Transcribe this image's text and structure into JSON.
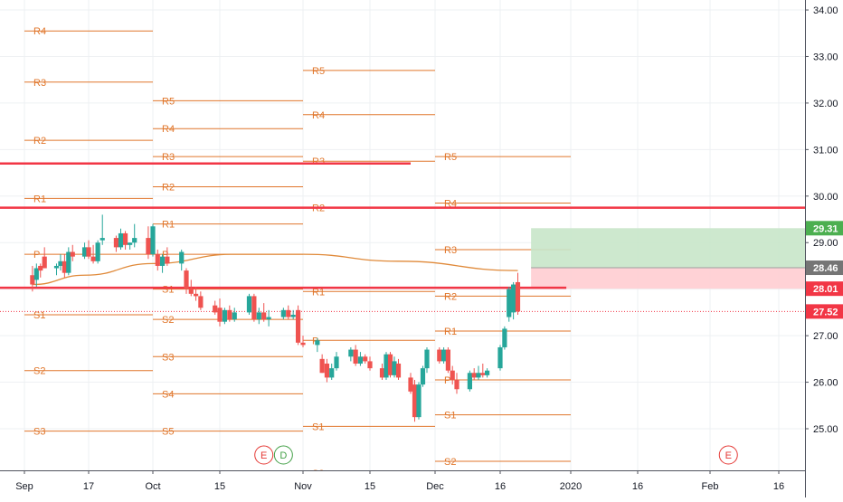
{
  "chart_data": {
    "type": "candlestick",
    "title": "",
    "xlabel": "",
    "ylabel": "",
    "ylim": [
      24.05,
      34.3
    ],
    "grid": true,
    "x_axis_ticks": [
      "Sep",
      "17",
      "Oct",
      "15",
      "Nov",
      "15",
      "Dec",
      "16",
      "2020",
      "16",
      "Feb",
      "16"
    ],
    "y_axis_ticks": [
      "25.00",
      "26.00",
      "27.00",
      "28.00",
      "29.00",
      "30.00",
      "31.00",
      "32.00",
      "33.00",
      "34.00"
    ],
    "price_badges": [
      {
        "label": "29.31",
        "value": 29.31,
        "color": "#4caf50"
      },
      {
        "label": "28.46",
        "value": 28.46,
        "color": "#757575"
      },
      {
        "label": "28.01",
        "value": 28.01,
        "color": "#f23645"
      },
      {
        "label": "27.52",
        "value": 27.52,
        "color": "#f23645"
      }
    ],
    "last_price_line": 27.52,
    "candle_series": {
      "up_color": "#26a69a",
      "down_color": "#ef5350",
      "candles": [
        {
          "date": "Sep 3",
          "o": 28.3,
          "h": 28.5,
          "l": 27.95,
          "c": 28.1
        },
        {
          "date": "Sep 4",
          "o": 28.2,
          "h": 28.55,
          "l": 28.05,
          "c": 28.45
        },
        {
          "date": "Sep 5",
          "o": 28.5,
          "h": 28.55,
          "l": 28.25,
          "c": 28.4
        },
        {
          "date": "Sep 6",
          "o": 28.7,
          "h": 28.9,
          "l": 28.45,
          "c": 28.45
        },
        {
          "date": "Sep 9",
          "o": 28.45,
          "h": 28.55,
          "l": 28.3,
          "c": 28.5
        },
        {
          "date": "Sep 10",
          "o": 28.5,
          "h": 28.75,
          "l": 28.4,
          "c": 28.6
        },
        {
          "date": "Sep 11",
          "o": 28.6,
          "h": 28.75,
          "l": 28.25,
          "c": 28.35
        },
        {
          "date": "Sep 12",
          "o": 28.35,
          "h": 28.9,
          "l": 28.3,
          "c": 28.8
        },
        {
          "date": "Sep 13",
          "o": 28.8,
          "h": 28.95,
          "l": 28.6,
          "c": 28.7
        },
        {
          "date": "Sep 16",
          "o": 28.7,
          "h": 29.0,
          "l": 28.65,
          "c": 28.9
        },
        {
          "date": "Sep 17",
          "o": 28.9,
          "h": 29.05,
          "l": 28.65,
          "c": 28.7
        },
        {
          "date": "Sep 18",
          "o": 28.7,
          "h": 28.95,
          "l": 28.55,
          "c": 28.6
        },
        {
          "date": "Sep 19",
          "o": 28.6,
          "h": 29.05,
          "l": 28.55,
          "c": 29.0
        },
        {
          "date": "Sep 20",
          "o": 29.05,
          "h": 29.6,
          "l": 28.95,
          "c": 29.1
        },
        {
          "date": "Sep 23",
          "o": 29.1,
          "h": 29.15,
          "l": 28.8,
          "c": 28.9
        },
        {
          "date": "Sep 24",
          "o": 28.9,
          "h": 29.3,
          "l": 28.85,
          "c": 29.2
        },
        {
          "date": "Sep 25",
          "o": 29.2,
          "h": 29.25,
          "l": 28.85,
          "c": 28.95
        },
        {
          "date": "Sep 26",
          "o": 28.95,
          "h": 29.0,
          "l": 28.85,
          "c": 29.0
        },
        {
          "date": "Sep 27",
          "o": 29.0,
          "h": 29.4,
          "l": 28.9,
          "c": 29.1
        },
        {
          "date": "Sep 30",
          "o": 29.1,
          "h": 29.35,
          "l": 28.65,
          "c": 28.75
        },
        {
          "date": "Oct 1",
          "o": 28.75,
          "h": 29.4,
          "l": 28.7,
          "c": 29.35
        },
        {
          "date": "Oct 2",
          "o": 28.75,
          "h": 28.85,
          "l": 28.4,
          "c": 28.5
        },
        {
          "date": "Oct 3",
          "o": 28.5,
          "h": 28.75,
          "l": 28.35,
          "c": 28.7
        },
        {
          "date": "Oct 4",
          "o": 28.7,
          "h": 28.9,
          "l": 28.5,
          "c": 28.55
        },
        {
          "date": "Oct 7",
          "o": 28.55,
          "h": 28.85,
          "l": 28.4,
          "c": 28.8
        },
        {
          "date": "Oct 8",
          "o": 28.4,
          "h": 28.45,
          "l": 27.9,
          "c": 28.0
        },
        {
          "date": "Oct 9",
          "o": 28.0,
          "h": 28.2,
          "l": 27.85,
          "c": 27.9
        },
        {
          "date": "Oct 10",
          "o": 27.9,
          "h": 28.05,
          "l": 27.75,
          "c": 27.85
        },
        {
          "date": "Oct 11",
          "o": 27.85,
          "h": 27.95,
          "l": 27.55,
          "c": 27.6
        },
        {
          "date": "Oct 14",
          "o": 27.65,
          "h": 27.75,
          "l": 27.45,
          "c": 27.5
        },
        {
          "date": "Oct 15",
          "o": 27.6,
          "h": 27.8,
          "l": 27.2,
          "c": 27.3
        },
        {
          "date": "Oct 16",
          "o": 27.3,
          "h": 27.6,
          "l": 27.25,
          "c": 27.55
        },
        {
          "date": "Oct 17",
          "o": 27.55,
          "h": 27.65,
          "l": 27.3,
          "c": 27.35
        },
        {
          "date": "Oct 18",
          "o": 27.35,
          "h": 27.6,
          "l": 27.3,
          "c": 27.5
        },
        {
          "date": "Oct 21",
          "o": 27.5,
          "h": 27.9,
          "l": 27.45,
          "c": 27.85
        },
        {
          "date": "Oct 22",
          "o": 27.85,
          "h": 27.9,
          "l": 27.3,
          "c": 27.35
        },
        {
          "date": "Oct 23",
          "o": 27.35,
          "h": 27.6,
          "l": 27.25,
          "c": 27.5
        },
        {
          "date": "Oct 24",
          "o": 27.5,
          "h": 27.7,
          "l": 27.3,
          "c": 27.35
        },
        {
          "date": "Oct 25",
          "o": 27.35,
          "h": 27.55,
          "l": 27.2,
          "c": 27.4
        },
        {
          "date": "Oct 28",
          "o": 27.4,
          "h": 27.6,
          "l": 27.35,
          "c": 27.55
        },
        {
          "date": "Oct 29",
          "o": 27.55,
          "h": 27.65,
          "l": 27.35,
          "c": 27.4
        },
        {
          "date": "Oct 30",
          "o": 27.4,
          "h": 27.55,
          "l": 27.35,
          "c": 27.45
        },
        {
          "date": "Oct 31",
          "o": 27.55,
          "h": 27.65,
          "l": 26.8,
          "c": 26.85
        },
        {
          "date": "Nov 1",
          "o": 26.85,
          "h": 27.0,
          "l": 26.75,
          "c": 26.8
        },
        {
          "date": "Nov 4",
          "o": 26.8,
          "h": 26.95,
          "l": 26.65,
          "c": 26.9
        },
        {
          "date": "Nov 5",
          "o": 26.5,
          "h": 26.6,
          "l": 26.2,
          "c": 26.2
        },
        {
          "date": "Nov 6",
          "o": 26.4,
          "h": 26.5,
          "l": 26.0,
          "c": 26.1
        },
        {
          "date": "Nov 7",
          "o": 26.1,
          "h": 26.4,
          "l": 26.05,
          "c": 26.3
        },
        {
          "date": "Nov 8",
          "o": 26.3,
          "h": 26.65,
          "l": 26.25,
          "c": 26.55
        },
        {
          "date": "Nov 11",
          "o": 26.55,
          "h": 26.75,
          "l": 26.45,
          "c": 26.7
        },
        {
          "date": "Nov 12",
          "o": 26.7,
          "h": 26.8,
          "l": 26.35,
          "c": 26.4
        },
        {
          "date": "Nov 13",
          "o": 26.4,
          "h": 26.65,
          "l": 26.35,
          "c": 26.55
        },
        {
          "date": "Nov 14",
          "o": 26.55,
          "h": 26.6,
          "l": 26.4,
          "c": 26.45
        },
        {
          "date": "Nov 15",
          "o": 26.45,
          "h": 26.55,
          "l": 26.25,
          "c": 26.3
        },
        {
          "date": "Nov 18",
          "o": 26.3,
          "h": 26.4,
          "l": 26.05,
          "c": 26.1
        },
        {
          "date": "Nov 19",
          "o": 26.1,
          "h": 26.65,
          "l": 26.05,
          "c": 26.6
        },
        {
          "date": "Nov 20",
          "o": 26.6,
          "h": 26.65,
          "l": 26.1,
          "c": 26.15
        },
        {
          "date": "Nov 21",
          "o": 26.15,
          "h": 26.55,
          "l": 26.1,
          "c": 26.45
        },
        {
          "date": "Nov 22",
          "o": 26.4,
          "h": 26.5,
          "l": 26.05,
          "c": 26.1
        },
        {
          "date": "Nov 25",
          "o": 26.1,
          "h": 26.2,
          "l": 25.75,
          "c": 25.8
        },
        {
          "date": "Nov 26",
          "o": 25.95,
          "h": 26.05,
          "l": 25.15,
          "c": 25.25
        },
        {
          "date": "Nov 27",
          "o": 25.25,
          "h": 26.0,
          "l": 25.2,
          "c": 25.95
        },
        {
          "date": "Nov 28",
          "o": 25.95,
          "h": 26.35,
          "l": 25.9,
          "c": 26.3
        },
        {
          "date": "Nov 29",
          "o": 26.3,
          "h": 26.75,
          "l": 26.2,
          "c": 26.7
        },
        {
          "date": "Dec 2",
          "o": 26.7,
          "h": 26.75,
          "l": 26.4,
          "c": 26.45
        },
        {
          "date": "Dec 3",
          "o": 26.45,
          "h": 26.75,
          "l": 26.4,
          "c": 26.7
        },
        {
          "date": "Dec 4",
          "o": 26.7,
          "h": 26.75,
          "l": 26.2,
          "c": 26.25
        },
        {
          "date": "Dec 5",
          "o": 26.25,
          "h": 26.35,
          "l": 25.95,
          "c": 26.05
        },
        {
          "date": "Dec 6",
          "o": 26.05,
          "h": 26.2,
          "l": 25.75,
          "c": 25.85
        },
        {
          "date": "Dec 9",
          "o": 25.85,
          "h": 26.25,
          "l": 25.8,
          "c": 26.2
        },
        {
          "date": "Dec 10",
          "o": 26.2,
          "h": 26.3,
          "l": 26.05,
          "c": 26.1
        },
        {
          "date": "Dec 11",
          "o": 26.1,
          "h": 26.35,
          "l": 26.05,
          "c": 26.2
        },
        {
          "date": "Dec 12",
          "o": 26.2,
          "h": 26.4,
          "l": 26.1,
          "c": 26.15
        },
        {
          "date": "Dec 13",
          "o": 26.15,
          "h": 26.3,
          "l": 26.1,
          "c": 26.25
        },
        {
          "date": "Dec 16",
          "o": 26.3,
          "h": 26.8,
          "l": 26.25,
          "c": 26.75
        },
        {
          "date": "Dec 17",
          "o": 26.75,
          "h": 27.2,
          "l": 26.7,
          "c": 27.15
        },
        {
          "date": "Dec 18",
          "o": 27.4,
          "h": 28.05,
          "l": 27.3,
          "c": 28.0
        },
        {
          "date": "Dec 19",
          "o": 27.5,
          "h": 28.15,
          "l": 27.35,
          "c": 28.1
        },
        {
          "date": "Dec 20",
          "o": 28.15,
          "h": 28.35,
          "l": 27.45,
          "c": 27.52
        }
      ]
    },
    "moving_average": {
      "color": "#e08a3a",
      "points": [
        {
          "date": "Sep 3",
          "value": 28.1
        },
        {
          "date": "Sep 16",
          "value": 28.3
        },
        {
          "date": "Oct 1",
          "value": 28.55
        },
        {
          "date": "Oct 18",
          "value": 28.75
        },
        {
          "date": "Nov 1",
          "value": 28.75
        },
        {
          "date": "Nov 22",
          "value": 28.6
        },
        {
          "date": "Dec 20",
          "value": 28.4
        }
      ]
    },
    "pivot_color": "#e0762b",
    "pivot_levels": [
      {
        "period": "Sep",
        "levels": [
          {
            "label": "R4",
            "value": 33.55
          },
          {
            "label": "R3",
            "value": 32.45
          },
          {
            "label": "R2",
            "value": 31.2
          },
          {
            "label": "R1",
            "value": 29.95
          },
          {
            "label": "P",
            "value": 28.75
          },
          {
            "label": "S1",
            "value": 27.45
          },
          {
            "label": "S2",
            "value": 26.25
          },
          {
            "label": "S3",
            "value": 24.95
          }
        ]
      },
      {
        "period": "Oct",
        "levels": [
          {
            "label": "R5",
            "value": 32.05
          },
          {
            "label": "R4",
            "value": 31.45
          },
          {
            "label": "R3",
            "value": 30.85
          },
          {
            "label": "R2",
            "value": 30.2
          },
          {
            "label": "R1",
            "value": 29.4
          },
          {
            "label": "P",
            "value": 28.75
          },
          {
            "label": "S1",
            "value": 28.0
          },
          {
            "label": "S2",
            "value": 27.35
          },
          {
            "label": "S3",
            "value": 26.55
          },
          {
            "label": "S4",
            "value": 25.75
          },
          {
            "label": "S5",
            "value": 24.95
          }
        ]
      },
      {
        "period": "Nov",
        "levels": [
          {
            "label": "R5",
            "value": 32.7
          },
          {
            "label": "R4",
            "value": 31.75
          },
          {
            "label": "R3",
            "value": 30.75
          },
          {
            "label": "R2",
            "value": 29.75
          },
          {
            "label": "R1",
            "value": 27.95
          },
          {
            "label": "P",
            "value": 26.9
          },
          {
            "label": "S1",
            "value": 25.05
          },
          {
            "label": "S2",
            "value": 24.05
          }
        ]
      },
      {
        "period": "Dec",
        "levels": [
          {
            "label": "R5",
            "value": 30.85
          },
          {
            "label": "R4",
            "value": 29.85
          },
          {
            "label": "R3",
            "value": 28.85
          },
          {
            "label": "R2",
            "value": 27.85
          },
          {
            "label": "R1",
            "value": 27.1
          },
          {
            "label": "P",
            "value": 26.05
          },
          {
            "label": "S1",
            "value": 25.3
          },
          {
            "label": "S2",
            "value": 24.3
          }
        ]
      }
    ],
    "red_horizontal_lines": [
      {
        "value": 30.7,
        "from": "Sep 3",
        "to": "Nov 25"
      },
      {
        "value": 29.75,
        "from": "Sep 3",
        "to": "Feb 28"
      },
      {
        "value": 28.03,
        "from": "Sep 3",
        "to": "Dec 31"
      }
    ],
    "position_zone": {
      "from": "Dec 23",
      "to": "Feb 28",
      "target": 29.31,
      "entry": 28.46,
      "stop": 28.01,
      "profit_color": "#c8e6c9",
      "loss_color": "#ffcdd2"
    },
    "event_markers": [
      {
        "label": "E",
        "date": "Oct 24",
        "color": "#e53935"
      },
      {
        "label": "D",
        "date": "Oct 28",
        "color": "#43a047"
      },
      {
        "label": "E",
        "date": "Feb 5",
        "color": "#e53935"
      }
    ]
  }
}
